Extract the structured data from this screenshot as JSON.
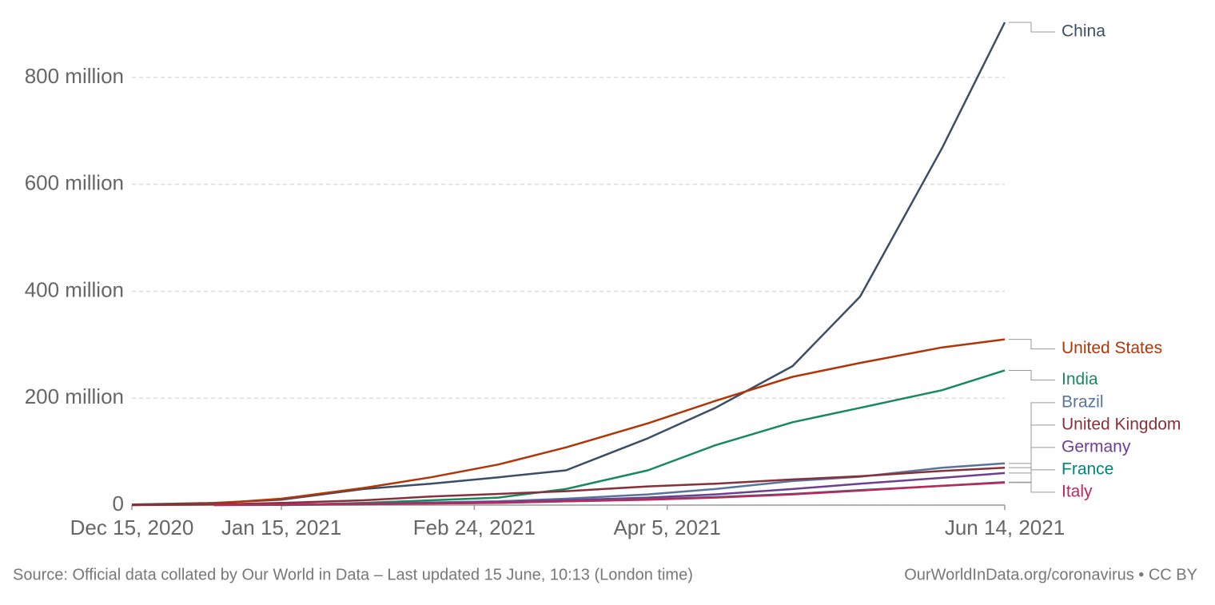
{
  "chart_data": {
    "type": "line",
    "x": [
      "2020-12-15",
      "2021-01-01",
      "2021-01-15",
      "2021-02-01",
      "2021-02-15",
      "2021-03-01",
      "2021-03-15",
      "2021-04-01",
      "2021-04-15",
      "2021-05-01",
      "2021-05-15",
      "2021-06-01",
      "2021-06-14"
    ],
    "xlim": [
      "2020-12-15",
      "2021-06-14"
    ],
    "xticks": [
      {
        "value": "2020-12-15",
        "label": "Dec 15, 2020"
      },
      {
        "value": "2021-01-15",
        "label": "Jan 15, 2021"
      },
      {
        "value": "2021-02-24",
        "label": "Feb 24, 2021"
      },
      {
        "value": "2021-04-05",
        "label": "Apr 5, 2021"
      },
      {
        "value": "2021-06-14",
        "label": "Jun 14, 2021"
      }
    ],
    "ylim": [
      0,
      900000000
    ],
    "yticks": [
      0,
      {
        "value": 200000000,
        "label": "200 million"
      },
      {
        "value": 400000000,
        "label": "400 million"
      },
      {
        "value": 600000000,
        "label": "600 million"
      },
      {
        "value": 800000000,
        "label": "800 million"
      }
    ],
    "grid": true,
    "series": [
      {
        "name": "China",
        "color": "#3c4e66",
        "values": [
          1000000,
          4000000,
          10000000,
          30000000,
          40000000,
          52000000,
          65000000,
          125000000,
          182000000,
          260000000,
          390000000,
          668000000,
          903000000
        ]
      },
      {
        "name": "United States",
        "color": "#b13507",
        "values": [
          0,
          3000000,
          12000000,
          32000000,
          52000000,
          76000000,
          108000000,
          153000000,
          195000000,
          240000000,
          266000000,
          295000000,
          310000000
        ]
      },
      {
        "name": "India",
        "color": "#18895e",
        "values": [
          null,
          null,
          0,
          4000000,
          9000000,
          14000000,
          30000000,
          65000000,
          112000000,
          155000000,
          182000000,
          215000000,
          252000000
        ]
      },
      {
        "name": "Brazil",
        "color": "#58749c",
        "values": [
          null,
          null,
          0,
          2000000,
          5000000,
          7000000,
          12000000,
          20000000,
          30000000,
          45000000,
          53000000,
          70000000,
          78000000
        ]
      },
      {
        "name": "United Kingdom",
        "color": "#883039",
        "values": [
          0,
          1000000,
          4000000,
          9000000,
          16000000,
          21000000,
          26000000,
          35000000,
          40000000,
          48000000,
          54000000,
          64000000,
          70000000
        ]
      },
      {
        "name": "Germany",
        "color": "#6d3e91",
        "values": [
          null,
          200000,
          1000000,
          2500000,
          4000000,
          6000000,
          9000000,
          14000000,
          20000000,
          30000000,
          40000000,
          51000000,
          60000000
        ]
      },
      {
        "name": "France",
        "color": "#00847e",
        "values": [
          null,
          0,
          500000,
          1500000,
          3000000,
          4000000,
          7000000,
          11000000,
          15000000,
          21000000,
          28000000,
          36000000,
          43000000
        ]
      },
      {
        "name": "Italy",
        "color": "#c0265a",
        "values": [
          null,
          100000,
          1000000,
          2000000,
          3000000,
          4500000,
          7000000,
          10000000,
          14000000,
          20000000,
          27000000,
          36000000,
          42000000
        ]
      }
    ],
    "source": "Source: Official data collated by Our World in Data – Last updated 15 June, 10:13 (London time)",
    "license": "OurWorldInData.org/coronavirus • CC BY"
  }
}
